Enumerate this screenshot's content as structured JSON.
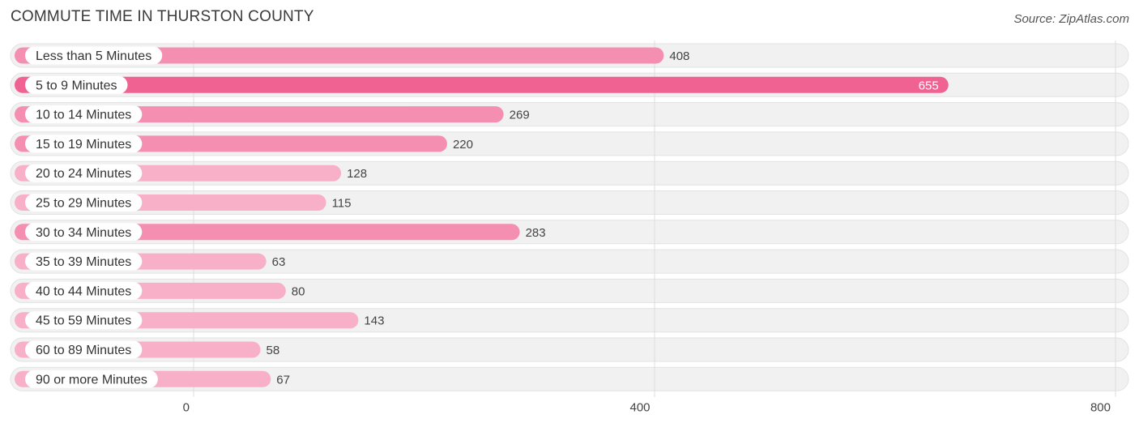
{
  "chart_data": {
    "type": "bar",
    "orientation": "horizontal",
    "title": "COMMUTE TIME IN THURSTON COUNTY",
    "source": "Source: ZipAtlas.com",
    "categories": [
      "Less than 5 Minutes",
      "5 to 9 Minutes",
      "10 to 14 Minutes",
      "15 to 19 Minutes",
      "20 to 24 Minutes",
      "25 to 29 Minutes",
      "30 to 34 Minutes",
      "35 to 39 Minutes",
      "40 to 44 Minutes",
      "45 to 59 Minutes",
      "60 to 89 Minutes",
      "90 or more Minutes"
    ],
    "values": [
      408,
      655,
      269,
      220,
      128,
      115,
      283,
      63,
      80,
      143,
      58,
      67
    ],
    "xlim": [
      0,
      800
    ],
    "xticks": [
      0,
      400,
      800
    ],
    "grid": true,
    "colors": {
      "bar_max": "#f06292",
      "bar_light": "#f8b0c8",
      "bar_mid": "#f48fb1",
      "track": "#f1f1f1",
      "track_border": "#e2e2e2",
      "grid": "#dddddd"
    }
  }
}
